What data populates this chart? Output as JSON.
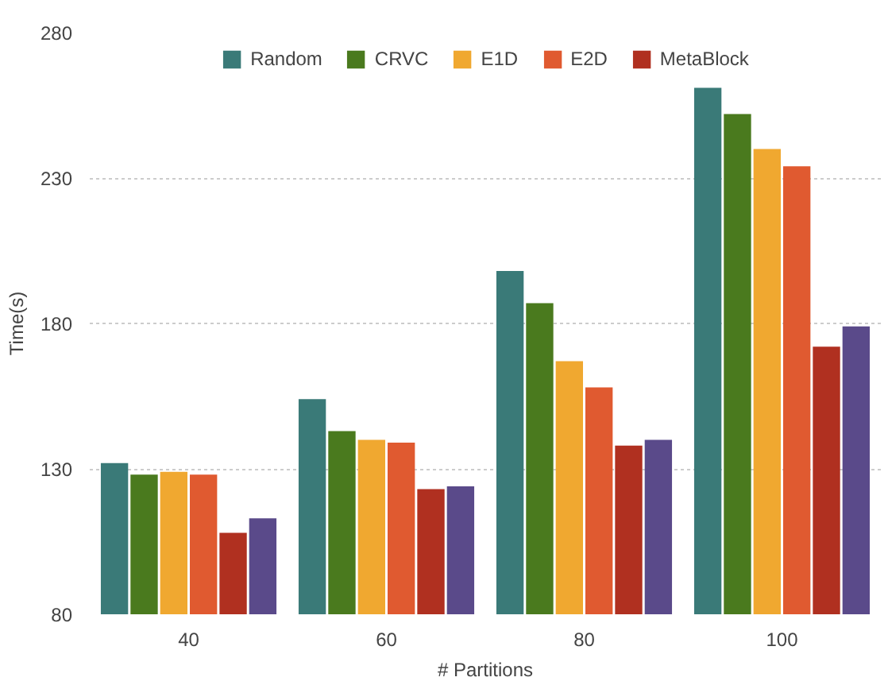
{
  "chart_data": {
    "type": "bar",
    "xlabel": "# Partitions",
    "ylabel": "Time(s)",
    "categories": [
      "40",
      "60",
      "80",
      "100"
    ],
    "series": [
      {
        "name": "Random",
        "color": "#3a7a78",
        "values": [
          132,
          154,
          198,
          261
        ]
      },
      {
        "name": "CRVC",
        "color": "#4a7a1e",
        "values": [
          128,
          143,
          187,
          252
        ]
      },
      {
        "name": "E1D",
        "color": "#f0a830",
        "values": [
          129,
          140,
          167,
          240
        ]
      },
      {
        "name": "E2D",
        "color": "#e05a30",
        "values": [
          128,
          139,
          158,
          234
        ]
      },
      {
        "name": "MetaBlock",
        "color": "#b03020",
        "values": [
          108,
          123,
          138,
          172
        ]
      },
      {
        "color": "#5a4a8a",
        "values": [
          113,
          124,
          140,
          179
        ]
      }
    ],
    "ylim": [
      80,
      280
    ],
    "yticks": [
      80,
      130,
      180,
      230,
      280
    ],
    "grid": "y",
    "legend": "top"
  }
}
